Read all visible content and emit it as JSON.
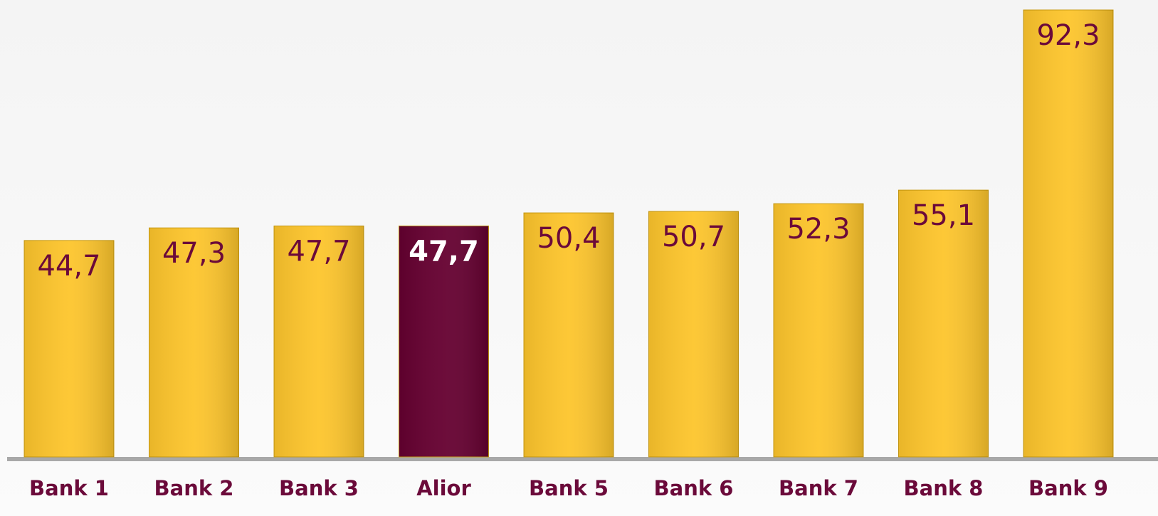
{
  "chart_data": {
    "type": "bar",
    "categories": [
      "Bank 1",
      "Bank 2",
      "Bank 3",
      "Alior",
      "Bank 5",
      "Bank 6",
      "Bank 7",
      "Bank 8",
      "Bank 9"
    ],
    "values": [
      44.7,
      47.3,
      47.7,
      47.7,
      50.4,
      50.7,
      52.3,
      55.1,
      92.3
    ],
    "value_labels": [
      "44,7",
      "47,3",
      "47,7",
      "47,7",
      "50,4",
      "50,7",
      "52,3",
      "55,1",
      "92,3"
    ],
    "colors": [
      "#fdc52c",
      "#fdc52c",
      "#fdc52c",
      "#650030",
      "#fdc52c",
      "#fdc52c",
      "#fdc52c",
      "#fdc52c",
      "#fdc52c"
    ],
    "value_label_colors": [
      "#6b0a3a",
      "#6b0a3a",
      "#6b0a3a",
      "#ffffff",
      "#6b0a3a",
      "#6b0a3a",
      "#6b0a3a",
      "#6b0a3a",
      "#6b0a3a"
    ],
    "category_color": "#6b0a3a",
    "highlight_index": 3
  }
}
